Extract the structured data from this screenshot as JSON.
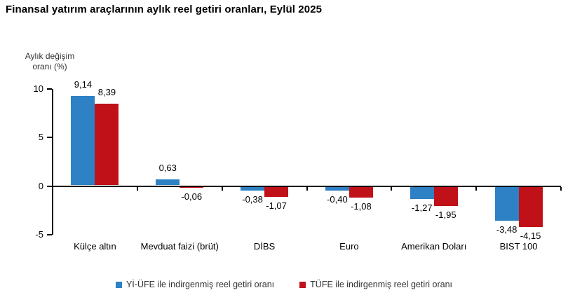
{
  "chart_data": {
    "type": "bar",
    "title": "Finansal yatırım araçlarının aylık reel getiri oranları, Eylül 2025",
    "ylabel_lines": [
      "Aylık değişim",
      "oranı (%)"
    ],
    "categories": [
      "Külçe altın",
      "Mevduat faizi (brüt)",
      "DİBS",
      "Euro",
      "Amerikan Doları",
      "BIST 100"
    ],
    "series": [
      {
        "name": "Yİ-ÜFE ile indirgenmiş reel getiri oranı",
        "color": "#2E81C4",
        "values": [
          9.14,
          0.63,
          -0.38,
          -0.4,
          -1.27,
          -3.48
        ],
        "labels": [
          "9,14",
          "0,63",
          "-0,38",
          "-0,40",
          "-1,27",
          "-3,48"
        ]
      },
      {
        "name": "TÜFE ile indirgenmiş reel getiri oranı",
        "color": "#C01119",
        "values": [
          8.39,
          -0.06,
          -1.07,
          -1.08,
          -1.95,
          -4.15
        ],
        "labels": [
          "8,39",
          "-0,06",
          "-1,07",
          "-1,08",
          "-1,95",
          "-4,15"
        ]
      }
    ],
    "ylim": [
      -5,
      10
    ],
    "yticks": [
      10,
      5,
      0,
      -5
    ],
    "ytick_labels": [
      "10",
      "5",
      "0",
      "-5"
    ],
    "grid": false,
    "legend_position": "bottom",
    "axis_color": "#000000"
  }
}
